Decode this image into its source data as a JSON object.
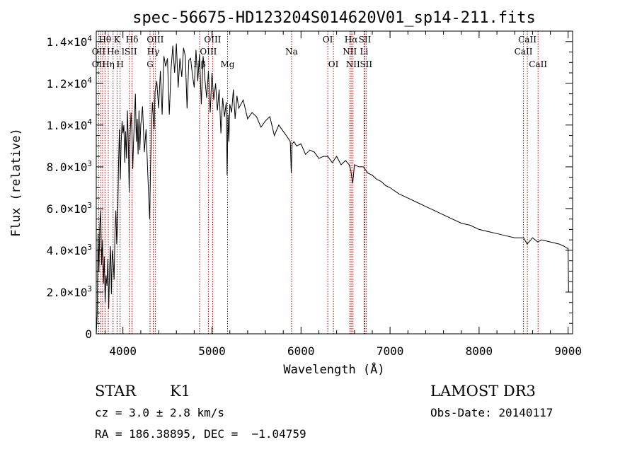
{
  "chart_data": {
    "type": "line",
    "title": "spec-56675-HD123204S014620V01_sp14-211.fits",
    "xlabel": "Wavelength (Å)",
    "ylabel": "Flux (relative)",
    "xlim": [
      3700,
      9050
    ],
    "ylim": [
      0,
      14500
    ],
    "x_ticks": [
      {
        "value": 4000,
        "label": "4000"
      },
      {
        "value": 5000,
        "label": "5000"
      },
      {
        "value": 6000,
        "label": "6000"
      },
      {
        "value": 7000,
        "label": "7000"
      },
      {
        "value": 8000,
        "label": "8000"
      },
      {
        "value": 9000,
        "label": "9000"
      }
    ],
    "y_ticks": [
      {
        "value": 0,
        "mant": "0",
        "exp": ""
      },
      {
        "value": 2000,
        "mant": "2.0×10",
        "exp": "3"
      },
      {
        "value": 4000,
        "mant": "4.0×10",
        "exp": "3"
      },
      {
        "value": 6000,
        "mant": "6.0×10",
        "exp": "3"
      },
      {
        "value": 8000,
        "mant": "8.0×10",
        "exp": "3"
      },
      {
        "value": 10000,
        "mant": "1.0×10",
        "exp": "4"
      },
      {
        "value": 12000,
        "mant": "1.2×10",
        "exp": "4"
      },
      {
        "value": 14000,
        "mant": "1.4×10",
        "exp": "4"
      }
    ],
    "series": [
      {
        "name": "flux",
        "x": [
          3700,
          3710,
          3720,
          3730,
          3740,
          3750,
          3760,
          3770,
          3780,
          3790,
          3800,
          3810,
          3820,
          3830,
          3840,
          3850,
          3860,
          3870,
          3880,
          3890,
          3900,
          3910,
          3920,
          3930,
          3940,
          3950,
          3960,
          3970,
          3980,
          3990,
          4000,
          4010,
          4020,
          4030,
          4040,
          4050,
          4060,
          4070,
          4080,
          4090,
          4100,
          4110,
          4120,
          4130,
          4140,
          4150,
          4160,
          4170,
          4180,
          4190,
          4200,
          4220,
          4240,
          4260,
          4280,
          4300,
          4310,
          4320,
          4330,
          4340,
          4350,
          4360,
          4380,
          4400,
          4420,
          4440,
          4460,
          4480,
          4500,
          4520,
          4540,
          4560,
          4580,
          4600,
          4620,
          4640,
          4660,
          4680,
          4700,
          4720,
          4740,
          4760,
          4780,
          4800,
          4820,
          4840,
          4860,
          4880,
          4900,
          4920,
          4940,
          4960,
          4980,
          5000,
          5020,
          5040,
          5060,
          5080,
          5100,
          5120,
          5140,
          5160,
          5170,
          5180,
          5190,
          5200,
          5220,
          5240,
          5260,
          5280,
          5300,
          5350,
          5400,
          5450,
          5500,
          5550,
          5600,
          5650,
          5700,
          5750,
          5800,
          5850,
          5880,
          5890,
          5900,
          5920,
          5950,
          6000,
          6050,
          6100,
          6150,
          6200,
          6250,
          6300,
          6350,
          6400,
          6450,
          6500,
          6540,
          6560,
          6580,
          6600,
          6650,
          6700,
          6750,
          6800,
          6850,
          6900,
          6950,
          7000,
          7100,
          7200,
          7300,
          7400,
          7500,
          7600,
          7700,
          7800,
          7900,
          8000,
          8100,
          8200,
          8300,
          8400,
          8500,
          8540,
          8600,
          8660,
          8700,
          8800,
          8900,
          8950,
          8990,
          9000,
          9005
        ],
        "y": [
          0,
          900,
          4800,
          3000,
          5200,
          5900,
          3300,
          4500,
          2400,
          3700,
          1500,
          2800,
          2300,
          3600,
          1200,
          3200,
          4200,
          1900,
          4000,
          3500,
          2600,
          4800,
          5900,
          4300,
          5200,
          8000,
          9800,
          7400,
          9200,
          10200,
          9600,
          10000,
          8200,
          9700,
          8400,
          10700,
          9200,
          6800,
          9500,
          10600,
          9800,
          7900,
          9300,
          10400,
          11500,
          9200,
          10300,
          8600,
          10700,
          8800,
          10000,
          10900,
          8700,
          9800,
          7500,
          5500,
          8000,
          9700,
          11100,
          10500,
          9800,
          11600,
          12100,
          10800,
          12600,
          10500,
          13300,
          12800,
          13200,
          10500,
          12700,
          13800,
          12500,
          13900,
          11800,
          13200,
          12300,
          13700,
          13300,
          10800,
          13100,
          13200,
          12400,
          11800,
          13600,
          12100,
          13400,
          11000,
          13300,
          12200,
          11300,
          12600,
          10600,
          12500,
          11200,
          12000,
          10700,
          11700,
          9600,
          11300,
          10400,
          11100,
          7600,
          10500,
          9200,
          11000,
          10600,
          11700,
          10300,
          11400,
          10800,
          11200,
          10300,
          10600,
          10400,
          9900,
          10200,
          10400,
          9500,
          10000,
          9700,
          9400,
          9200,
          7700,
          9100,
          9200,
          9000,
          9100,
          8600,
          8800,
          8700,
          8400,
          8500,
          8500,
          8200,
          8500,
          8100,
          8300,
          8100,
          7800,
          7200,
          8100,
          8000,
          8000,
          7700,
          7600,
          7400,
          7300,
          7100,
          7000,
          6700,
          6500,
          6300,
          6100,
          5900,
          5700,
          5500,
          5300,
          5200,
          5000,
          4900,
          4800,
          4700,
          4600,
          4600,
          4300,
          4600,
          4400,
          4500,
          4400,
          4300,
          4200,
          4100,
          4100,
          2000
        ]
      }
    ],
    "spectral_lines": [
      {
        "label": "Hθ",
        "x": 3798,
        "row": 0
      },
      {
        "label": "K",
        "x": 3934,
        "row": 0
      },
      {
        "label": "Hδ",
        "x": 4102,
        "row": 0
      },
      {
        "label": "OIII",
        "x": 4363,
        "row": 0
      },
      {
        "label": "OIII",
        "x": 5007,
        "row": 0
      },
      {
        "label": "OI",
        "x": 6300,
        "row": 0
      },
      {
        "label": "Hα",
        "x": 6563,
        "row": 0
      },
      {
        "label": "SII",
        "x": 6717,
        "row": 0
      },
      {
        "label": "CaII",
        "x": 8542,
        "row": 0
      },
      {
        "label": "OII",
        "x": 3727,
        "row": 1
      },
      {
        "label": "He",
        "x": 3889,
        "row": 1
      },
      {
        "label": "lSII",
        "x": 4072,
        "row": 1
      },
      {
        "label": "Hγ",
        "x": 4340,
        "row": 1
      },
      {
        "label": "OIII",
        "x": 4959,
        "row": 1
      },
      {
        "label": "Na",
        "x": 5893,
        "row": 1
      },
      {
        "label": "NII",
        "x": 6548,
        "row": 1
      },
      {
        "label": "Li",
        "x": 6708,
        "row": 1
      },
      {
        "label": "CaII",
        "x": 8498,
        "row": 1
      },
      {
        "label": "OII",
        "x": 3727,
        "row": 2
      },
      {
        "label": "Hη",
        "x": 3835,
        "row": 2
      },
      {
        "label": "H",
        "x": 3968,
        "row": 2
      },
      {
        "label": "G",
        "x": 4304,
        "row": 2
      },
      {
        "label": "Hβ",
        "x": 4861,
        "row": 2
      },
      {
        "label": "Mg",
        "x": 5175,
        "row": 2
      },
      {
        "label": "OI",
        "x": 6364,
        "row": 2
      },
      {
        "label": "NII",
        "x": 6583,
        "row": 2
      },
      {
        "label": "SII",
        "x": 6731,
        "row": 2
      },
      {
        "label": "CaII",
        "x": 8662,
        "row": 2
      }
    ],
    "marker_lines": [
      3727,
      3750,
      3771,
      3798,
      3835,
      3889,
      3934,
      3968,
      4072,
      4102,
      4304,
      4340,
      4363,
      4861,
      4959,
      5007,
      5175,
      5893,
      6300,
      6364,
      6548,
      6563,
      6583,
      6708,
      6717,
      6731,
      8498,
      8542,
      8662
    ],
    "line_color": "#000000",
    "marker_color": "#b00000"
  },
  "info": {
    "object_type": "STAR",
    "subclass": "K1",
    "survey": "LAMOST DR3",
    "cz": "cz = 3.0 ± 2.8 km/s",
    "obs_date": "Obs-Date: 20140117",
    "coords": "RA = 186.38895, DEC =  −1.04759"
  }
}
